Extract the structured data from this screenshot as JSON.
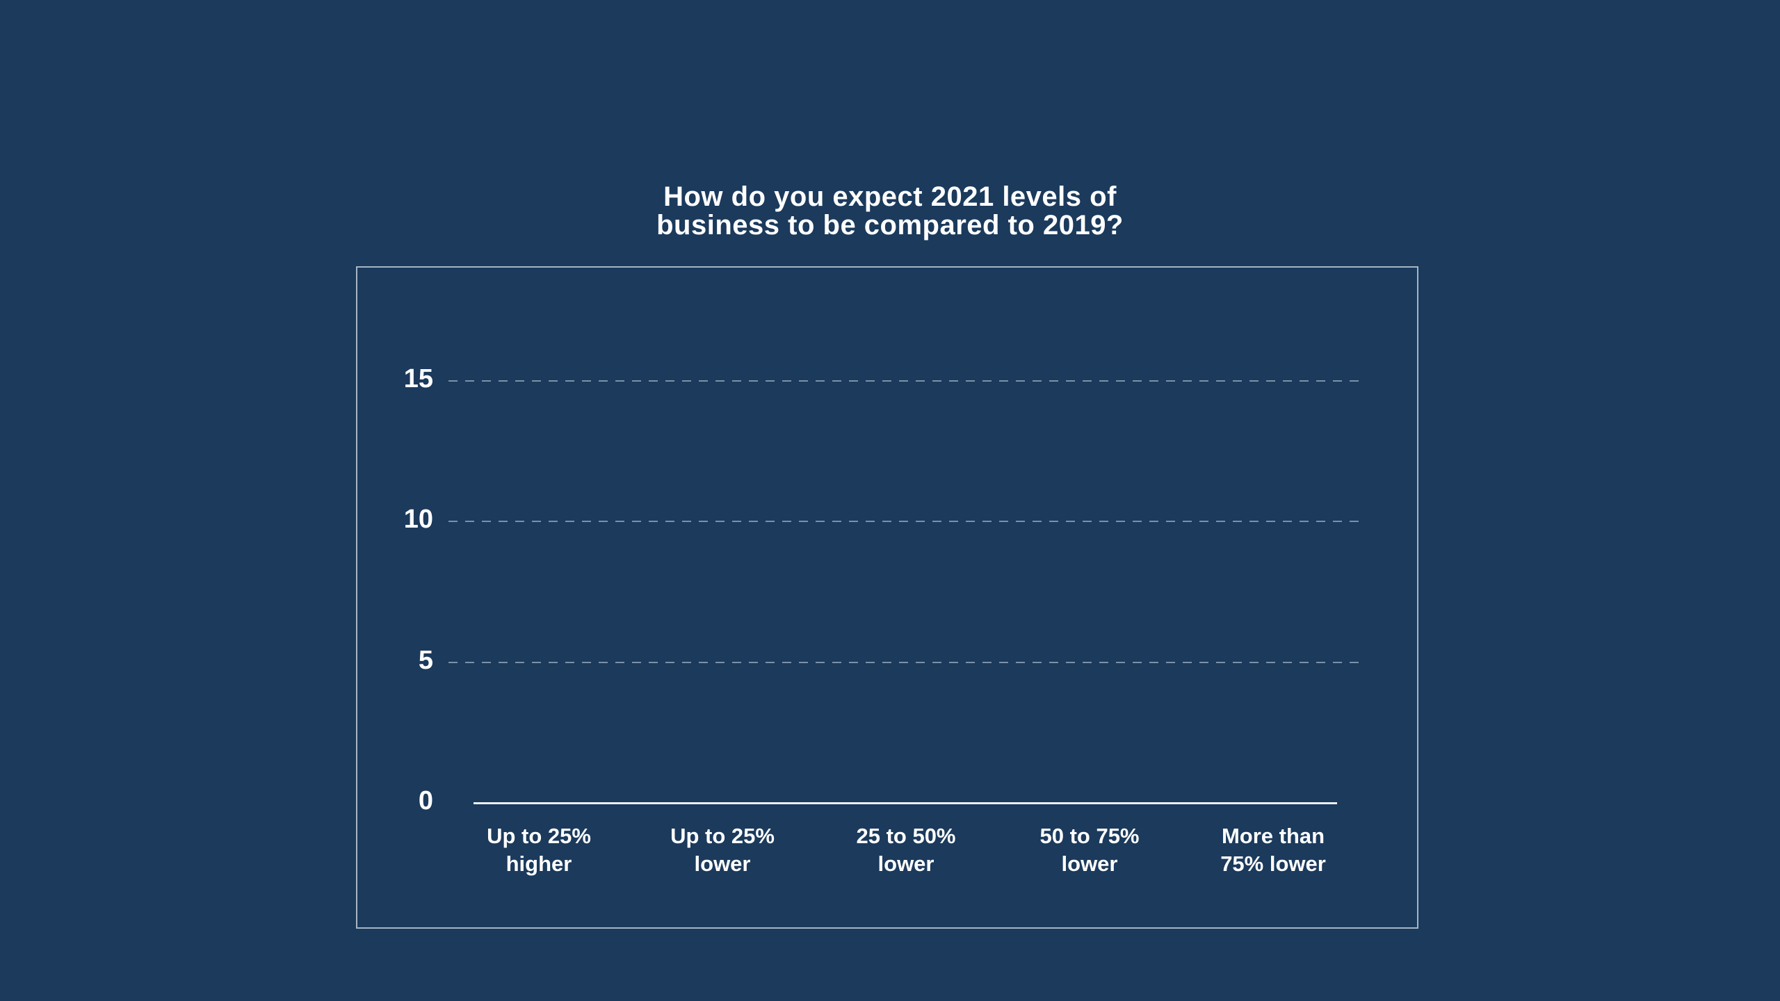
{
  "page": {
    "background_color": "#1b3a5c"
  },
  "chart_data": {
    "type": "bar",
    "title": "How do you expect 2021 levels of business to be compared to 2019?",
    "title_display": "How do you expect 2021 levels of\nbusiness to be compared to 2019?",
    "categories": [
      "Up to 25% higher",
      "Up to 25% lower",
      "25 to 50% lower",
      "50 to 75% lower",
      "More than 75% lower"
    ],
    "categories_display": [
      "Up to 25%\nhigher",
      "Up to 25%\nlower",
      "25 to 50%\nlower",
      "50 to 75%\nlower",
      "More than\n75% lower"
    ],
    "values": [
      0,
      0,
      0,
      0,
      0
    ],
    "yticks": [
      0,
      5,
      10,
      15
    ],
    "ytick_labels": [
      "0",
      "5",
      "10",
      "15"
    ],
    "ylim": [
      0,
      19
    ],
    "xlabel": "",
    "ylabel": "",
    "grid": "horizontal-dashed",
    "legend_position": "none",
    "colors": {
      "background": "#1b3a5c",
      "text": "#ffffff",
      "gridline": "#7b92a7",
      "axis_line": "#eaf0f4",
      "frame_border": "#a6b6c4",
      "bar": "#ffffff"
    }
  }
}
